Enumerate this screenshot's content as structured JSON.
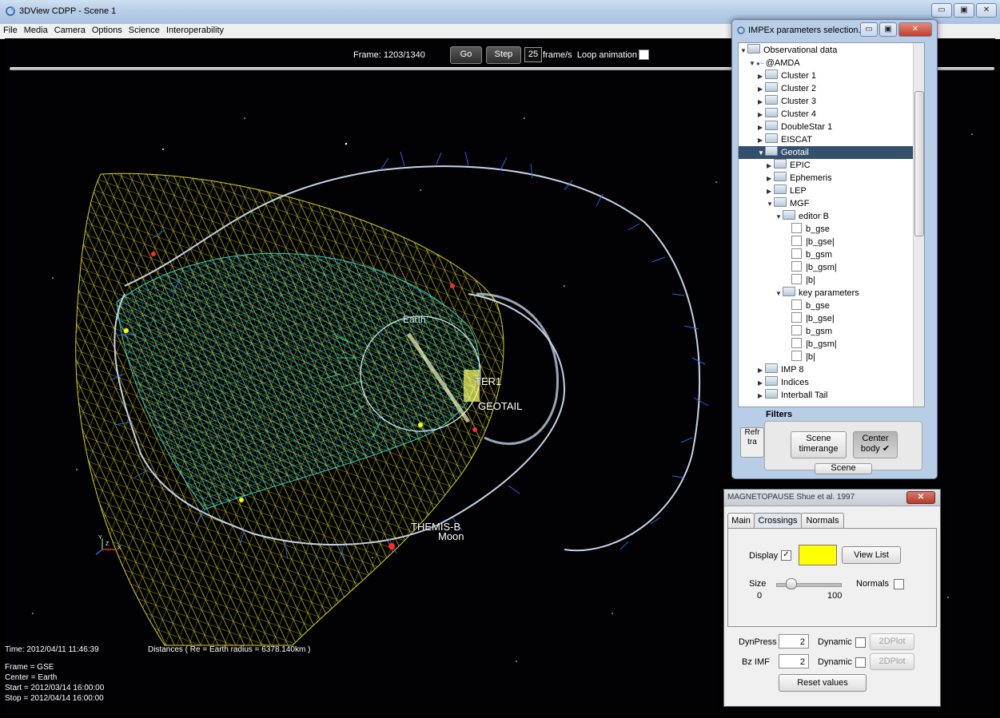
{
  "window": {
    "title": "3DView CDPP - Scene 1",
    "buttons": [
      "▭",
      "▣",
      "✕"
    ]
  },
  "menu": [
    "File",
    "Media",
    "Camera",
    "Options",
    "Science",
    "Interoperability"
  ],
  "controls": {
    "frame": "Frame: 1203/1340",
    "go": "Go",
    "step": "Step",
    "fps": "25",
    "fps_label": "frame/s",
    "loop": "Loop animation"
  },
  "scene_labels": {
    "earth": "Earth",
    "ter1": "TER1",
    "geotail": "GEOTAIL",
    "themis": "THEMIS-B",
    "moon": "Moon"
  },
  "axes": {
    "y": "Y",
    "z": "Z",
    "x": "X"
  },
  "info": {
    "time": "Time: 2012/04/11 11:46:39",
    "distances": "Distances ( Re = Earth radius = 6378.140km )",
    "frame": "Frame = GSE",
    "center": "Center = Earth",
    "start": "Start = 2012/03/14 16:00:00",
    "stop": "Stop = 2012/04/14 16:00:00"
  },
  "impex": {
    "title": "IMPEx parameters selection...",
    "tree": [
      {
        "label": "Observational data",
        "indent": 0,
        "kind": "folder",
        "open": true
      },
      {
        "label": "@AMDA",
        "indent": 1,
        "kind": "node",
        "open": true
      },
      {
        "label": "Cluster 1",
        "indent": 2,
        "kind": "folder"
      },
      {
        "label": "Cluster 2",
        "indent": 2,
        "kind": "folder"
      },
      {
        "label": "Cluster 3",
        "indent": 2,
        "kind": "folder"
      },
      {
        "label": "Cluster 4",
        "indent": 2,
        "kind": "folder"
      },
      {
        "label": "DoubleStar 1",
        "indent": 2,
        "kind": "folder"
      },
      {
        "label": "EISCAT",
        "indent": 2,
        "kind": "folder"
      },
      {
        "label": "Geotail",
        "indent": 2,
        "kind": "folder",
        "open": true,
        "selected": true
      },
      {
        "label": "EPIC",
        "indent": 3,
        "kind": "folder"
      },
      {
        "label": "Ephemeris",
        "indent": 3,
        "kind": "folder"
      },
      {
        "label": "LEP",
        "indent": 3,
        "kind": "folder"
      },
      {
        "label": "MGF",
        "indent": 3,
        "kind": "folder",
        "open": true
      },
      {
        "label": "editor B",
        "indent": 4,
        "kind": "folder",
        "open": true
      },
      {
        "label": "b_gse",
        "indent": 5,
        "kind": "check"
      },
      {
        "label": "|b_gse|",
        "indent": 5,
        "kind": "check"
      },
      {
        "label": "b_gsm",
        "indent": 5,
        "kind": "check"
      },
      {
        "label": "|b_gsm|",
        "indent": 5,
        "kind": "check"
      },
      {
        "label": "|b|",
        "indent": 5,
        "kind": "check"
      },
      {
        "label": "key parameters",
        "indent": 4,
        "kind": "folder",
        "open": true
      },
      {
        "label": "b_gse",
        "indent": 5,
        "kind": "check"
      },
      {
        "label": "|b_gse|",
        "indent": 5,
        "kind": "check"
      },
      {
        "label": "b_gsm",
        "indent": 5,
        "kind": "check"
      },
      {
        "label": "|b_gsm|",
        "indent": 5,
        "kind": "check"
      },
      {
        "label": "|b|",
        "indent": 5,
        "kind": "check"
      },
      {
        "label": "IMP 8",
        "indent": 2,
        "kind": "folder"
      },
      {
        "label": "Indices",
        "indent": 2,
        "kind": "folder"
      },
      {
        "label": "Interball Tail",
        "indent": 2,
        "kind": "folder"
      }
    ],
    "filters_label": "Filters",
    "refresh_partial": "Refr tra",
    "scene_timerange": [
      "Scene",
      "timerange"
    ],
    "center_body": [
      "Center",
      "body ✔"
    ],
    "scene_btn": "Scene"
  },
  "magnetopause": {
    "title": "MAGNETOPAUSE Shue et al. 1997",
    "close": "✕",
    "tabs": [
      "Main",
      "Crossings",
      "Normals"
    ],
    "active_tab": "Crossings",
    "display_label": "Display",
    "display_checked": "✓",
    "display_color": "#ffff00",
    "view_list": "View List",
    "size_label": "Size",
    "size_min": "0",
    "size_max": "100",
    "normals_label": "Normals",
    "dynpress_label": "DynPress",
    "dynpress_value": "2",
    "bzimf_label": "Bz IMF",
    "bzimf_value": "2",
    "dynamic_label": "Dynamic",
    "plot_label": "2DPlot",
    "reset": "Reset values"
  }
}
